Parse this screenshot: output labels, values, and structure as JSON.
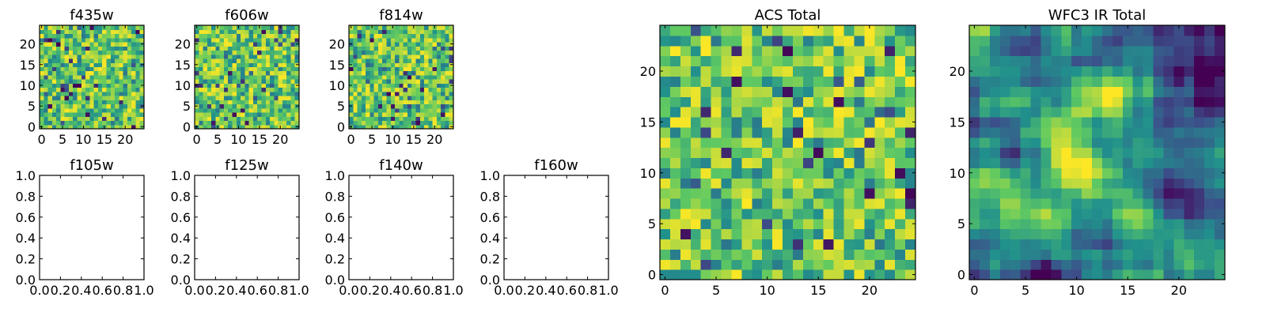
{
  "colors": {
    "background": "#ffffff",
    "axes": "#000000",
    "colormap": "viridis",
    "viridis_stops": [
      "#440154",
      "#3b528b",
      "#21918c",
      "#5ec962",
      "#fde725"
    ]
  },
  "chart_data": [
    {
      "id": "f435w",
      "title": "f435w",
      "type": "heatmap",
      "grid": "25x25",
      "xlim": [
        -0.5,
        24.5
      ],
      "ylim": [
        -0.5,
        24.5
      ],
      "xticks": [
        "0",
        "5",
        "10",
        "15",
        "20"
      ],
      "yticks": [
        "0",
        "5",
        "10",
        "15",
        "20"
      ],
      "value_range": [
        0,
        1
      ],
      "has_data": true,
      "pattern": "noise",
      "seed": 11
    },
    {
      "id": "f606w",
      "title": "f606w",
      "type": "heatmap",
      "grid": "25x25",
      "xlim": [
        -0.5,
        24.5
      ],
      "ylim": [
        -0.5,
        24.5
      ],
      "xticks": [
        "0",
        "5",
        "10",
        "15",
        "20"
      ],
      "yticks": [
        "0",
        "5",
        "10",
        "15",
        "20"
      ],
      "value_range": [
        0,
        1
      ],
      "has_data": true,
      "pattern": "noise",
      "seed": 23
    },
    {
      "id": "f814w",
      "title": "f814w",
      "type": "heatmap",
      "grid": "25x25",
      "xlim": [
        -0.5,
        24.5
      ],
      "ylim": [
        -0.5,
        24.5
      ],
      "xticks": [
        "0",
        "5",
        "10",
        "15",
        "20"
      ],
      "yticks": [
        "0",
        "5",
        "10",
        "15",
        "20"
      ],
      "value_range": [
        0,
        1
      ],
      "has_data": true,
      "pattern": "noise",
      "seed": 37
    },
    {
      "id": "f105w",
      "title": "f105w",
      "type": "heatmap",
      "xlim": [
        0,
        1
      ],
      "ylim": [
        0,
        1
      ],
      "xticks": [
        "0.0",
        "0.2",
        "0.4",
        "0.6",
        "0.8",
        "1.0"
      ],
      "yticks": [
        "0.0",
        "0.2",
        "0.4",
        "0.6",
        "0.8",
        "1.0"
      ],
      "has_data": false
    },
    {
      "id": "f125w",
      "title": "f125w",
      "type": "heatmap",
      "xlim": [
        0,
        1
      ],
      "ylim": [
        0,
        1
      ],
      "xticks": [
        "0.0",
        "0.2",
        "0.4",
        "0.6",
        "0.8",
        "1.0"
      ],
      "yticks": [
        "0.0",
        "0.2",
        "0.4",
        "0.6",
        "0.8",
        "1.0"
      ],
      "has_data": false
    },
    {
      "id": "f140w",
      "title": "f140w",
      "type": "heatmap",
      "xlim": [
        0,
        1
      ],
      "ylim": [
        0,
        1
      ],
      "xticks": [
        "0.0",
        "0.2",
        "0.4",
        "0.6",
        "0.8",
        "1.0"
      ],
      "yticks": [
        "0.0",
        "0.2",
        "0.4",
        "0.6",
        "0.8",
        "1.0"
      ],
      "has_data": false
    },
    {
      "id": "f160w",
      "title": "f160w",
      "type": "heatmap",
      "xlim": [
        0,
        1
      ],
      "ylim": [
        0,
        1
      ],
      "xticks": [
        "0.0",
        "0.2",
        "0.4",
        "0.6",
        "0.8",
        "1.0"
      ],
      "yticks": [
        "0.0",
        "0.2",
        "0.4",
        "0.6",
        "0.8",
        "1.0"
      ],
      "has_data": false
    },
    {
      "id": "acs-total",
      "title": "ACS Total",
      "type": "heatmap",
      "grid": "25x25",
      "xlim": [
        -0.5,
        24.5
      ],
      "ylim": [
        -0.5,
        24.5
      ],
      "xticks": [
        "0",
        "5",
        "10",
        "15",
        "20"
      ],
      "yticks": [
        "0",
        "5",
        "10",
        "15",
        "20"
      ],
      "value_range": [
        0,
        1
      ],
      "has_data": true,
      "pattern": "noise",
      "seed": 53
    },
    {
      "id": "wfc3-ir-total",
      "title": "WFC3 IR Total",
      "type": "heatmap",
      "grid": "25x25",
      "xlim": [
        -0.5,
        24.5
      ],
      "ylim": [
        -0.5,
        24.5
      ],
      "xticks": [
        "0",
        "5",
        "10",
        "15",
        "20"
      ],
      "yticks": [
        "0",
        "5",
        "10",
        "15",
        "20"
      ],
      "value_range": [
        0,
        1
      ],
      "has_data": true,
      "pattern": "smooth",
      "seed": 71
    }
  ]
}
